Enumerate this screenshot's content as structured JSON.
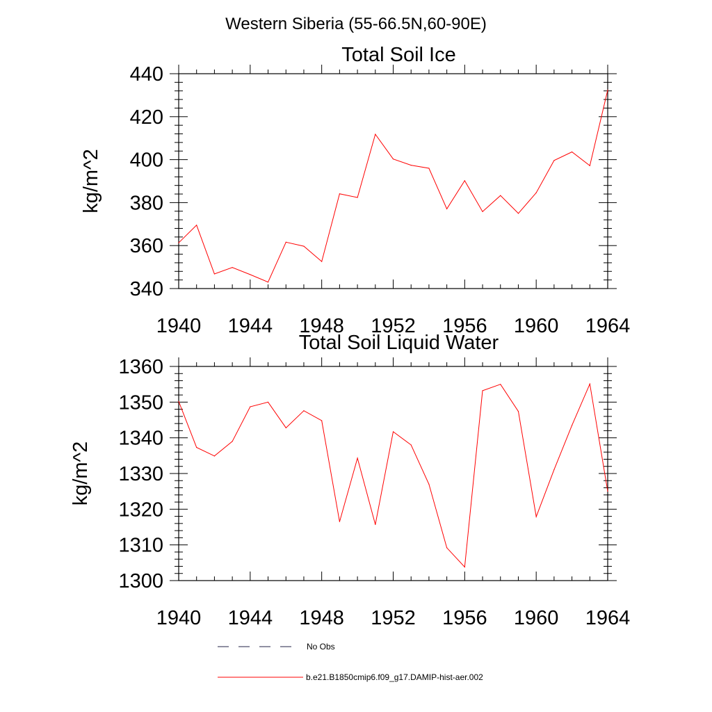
{
  "figure": {
    "title": "Western Siberia (55-66.5N,60-90E)"
  },
  "chart_data": [
    {
      "type": "line",
      "title": "Total Soil Ice",
      "xlabel": "",
      "ylabel": "kg/m^2",
      "xlim": [
        1940,
        1964
      ],
      "ylim": [
        340,
        440
      ],
      "x_ticks": [
        "1940",
        "1944",
        "1948",
        "1952",
        "1956",
        "1960",
        "1964"
      ],
      "y_ticks": [
        "340",
        "360",
        "380",
        "400",
        "420",
        "440"
      ],
      "x": [
        1940,
        1941,
        1942,
        1943,
        1944,
        1945,
        1946,
        1947,
        1948,
        1949,
        1950,
        1951,
        1952,
        1953,
        1954,
        1955,
        1956,
        1957,
        1958,
        1959,
        1960,
        1961,
        1962,
        1963,
        1964
      ],
      "series": [
        {
          "name": "b.e21.B1850cmip6.f09_g17.DAMIP-hist-aer.002",
          "color": "#ff0000",
          "values": [
            361.3,
            369.5,
            346.8,
            349.8,
            346.5,
            343.0,
            361.6,
            359.7,
            352.6,
            384.1,
            382.4,
            411.8,
            400.3,
            397.4,
            396.0,
            377.1,
            390.2,
            375.8,
            383.3,
            375.0,
            384.6,
            399.6,
            403.6,
            397.2,
            432.4
          ]
        }
      ],
      "grid": false
    },
    {
      "type": "line",
      "title": "Total Soil Liquid Water",
      "xlabel": "",
      "ylabel": "kg/m^2",
      "xlim": [
        1940,
        1964
      ],
      "ylim": [
        1300,
        1360
      ],
      "x_ticks": [
        "1940",
        "1944",
        "1948",
        "1952",
        "1956",
        "1960",
        "1964"
      ],
      "y_ticks": [
        "1300",
        "1310",
        "1320",
        "1330",
        "1340",
        "1350",
        "1360"
      ],
      "x": [
        1940,
        1941,
        1942,
        1943,
        1944,
        1945,
        1946,
        1947,
        1948,
        1949,
        1950,
        1951,
        1952,
        1953,
        1954,
        1955,
        1956,
        1957,
        1958,
        1959,
        1960,
        1961,
        1962,
        1963,
        1964
      ],
      "series": [
        {
          "name": "b.e21.B1850cmip6.f09_g17.DAMIP-hist-aer.002",
          "color": "#ff0000",
          "values": [
            1350.2,
            1337.3,
            1334.9,
            1339.0,
            1348.7,
            1350.0,
            1342.8,
            1347.6,
            1344.8,
            1316.5,
            1334.3,
            1315.7,
            1341.7,
            1338.0,
            1327.0,
            1309.2,
            1303.8,
            1353.2,
            1355.0,
            1347.4,
            1317.9,
            1331.1,
            1343.5,
            1355.1,
            1325.0
          ]
        }
      ],
      "grid": false
    }
  ],
  "legend": {
    "placement": "bottom",
    "items": [
      {
        "label": "No Obs",
        "style": "dashed",
        "color": "#222244"
      },
      {
        "label": "b.e21.B1850cmip6.f09_g17.DAMIP-hist-aer.002",
        "style": "solid",
        "color": "#ff0000"
      }
    ]
  }
}
